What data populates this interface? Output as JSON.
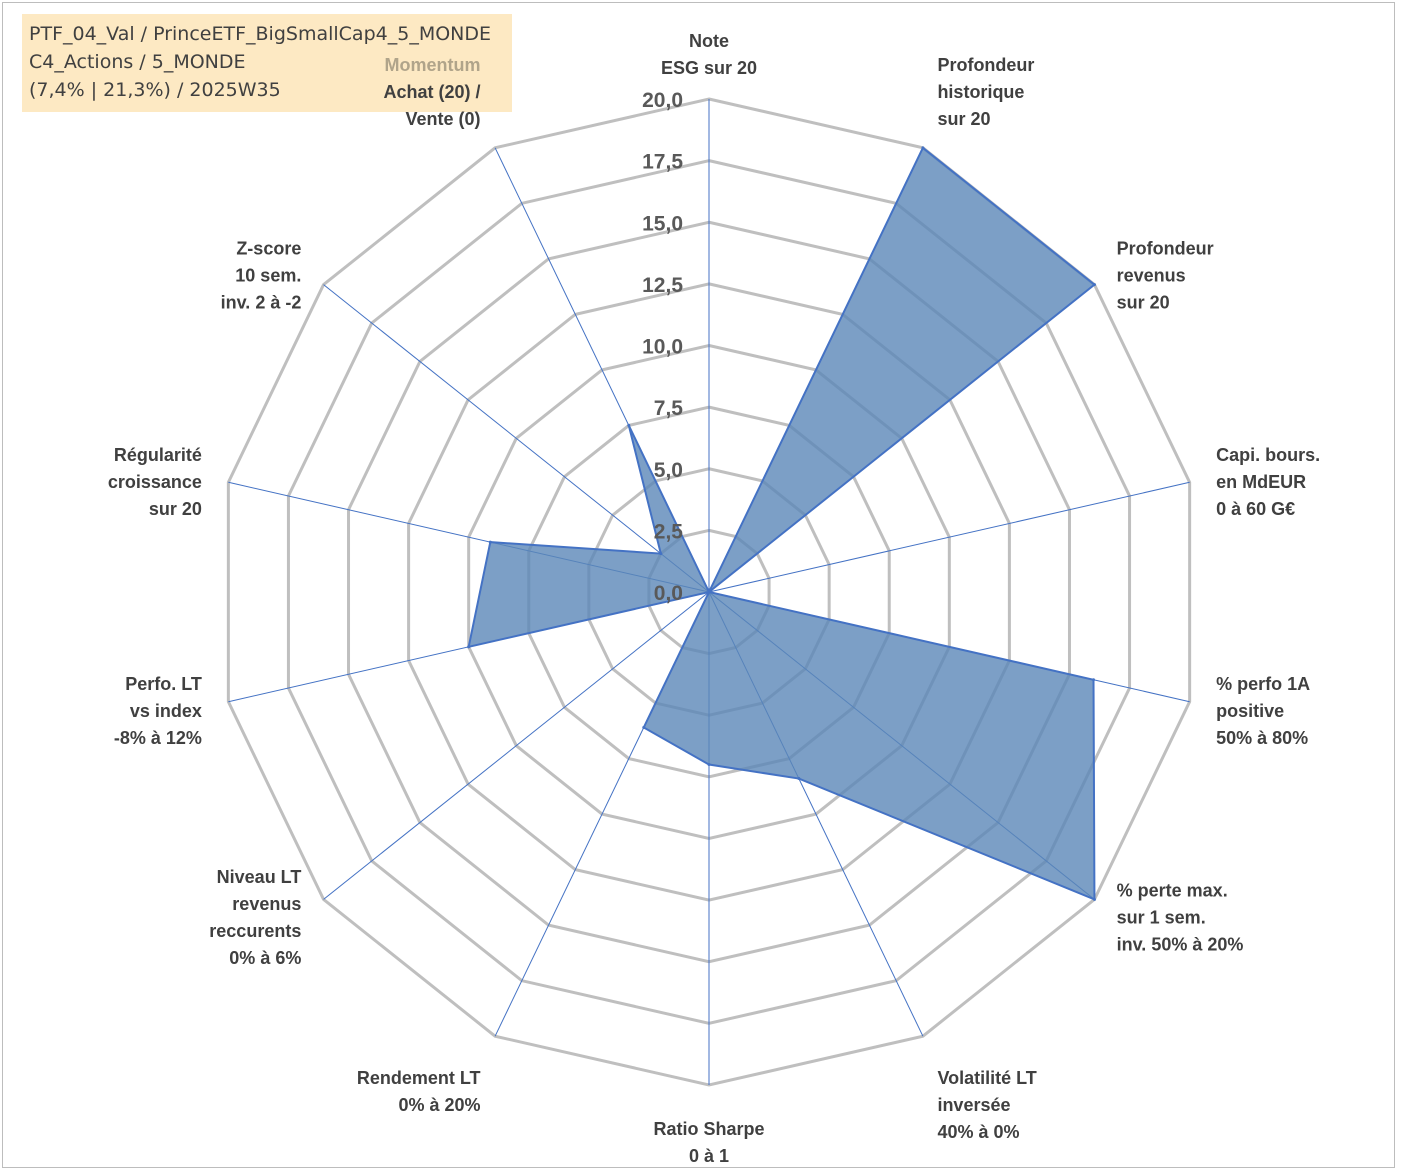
{
  "info_box": {
    "line1": "PTF_04_Val / PrinceETF_BigSmallCap4_5_MONDE",
    "line2": "C4_Actions / 5_MONDE",
    "line3": "(7,4% | 21,3%) / 2025W35"
  },
  "colors": {
    "fill": "#5b87b8",
    "stroke": "#4472c4",
    "grid": "#bfbfbf",
    "spoke": "#4472c4",
    "background_box": "#fde9c3"
  },
  "chart_data": {
    "type": "radar",
    "title": "",
    "rlim": [
      0,
      20
    ],
    "grid": true,
    "tick_labels": [
      "0,0",
      "2,5",
      "5,0",
      "7,5",
      "10,0",
      "12,5",
      "15,0",
      "17,5",
      "20,0"
    ],
    "axes": [
      {
        "lines": [
          "Note",
          "ESG sur 20"
        ]
      },
      {
        "lines": [
          "Profondeur",
          "historique",
          "sur 20"
        ]
      },
      {
        "lines": [
          "Profondeur",
          "revenus",
          "sur 20"
        ]
      },
      {
        "lines": [
          "Capi. bours.",
          "en MdEUR",
          "0 à 60 G€"
        ]
      },
      {
        "lines": [
          "% perfo 1A",
          "positive",
          "50% à 80%"
        ]
      },
      {
        "lines": [
          "% perte max.",
          "sur 1 sem.",
          "inv. 50% à 20%"
        ]
      },
      {
        "lines": [
          "Volatilité LT",
          "inversée",
          "40% à 0%"
        ]
      },
      {
        "lines": [
          "Ratio Sharpe",
          "0 à 1"
        ]
      },
      {
        "lines": [
          "Rendement LT",
          "0% à 20%"
        ]
      },
      {
        "lines": [
          "Niveau LT",
          "revenus",
          "reccurents",
          "0% à 6%"
        ]
      },
      {
        "lines": [
          "Perfo. LT",
          "vs index",
          "-8% à 12%"
        ]
      },
      {
        "lines": [
          "Régularité",
          "croissance",
          "sur 20"
        ]
      },
      {
        "lines": [
          "Z-score",
          "10 sem.",
          "inv. 2 à -2"
        ]
      },
      {
        "lines": [
          "Momentum",
          "Achat (20) /",
          "Vente (0)"
        ]
      }
    ],
    "series": [
      {
        "values": [
          0,
          20,
          20,
          0,
          16,
          20,
          8.4,
          7,
          6.1,
          0,
          10,
          9.1,
          2.5,
          7.5
        ]
      }
    ]
  }
}
